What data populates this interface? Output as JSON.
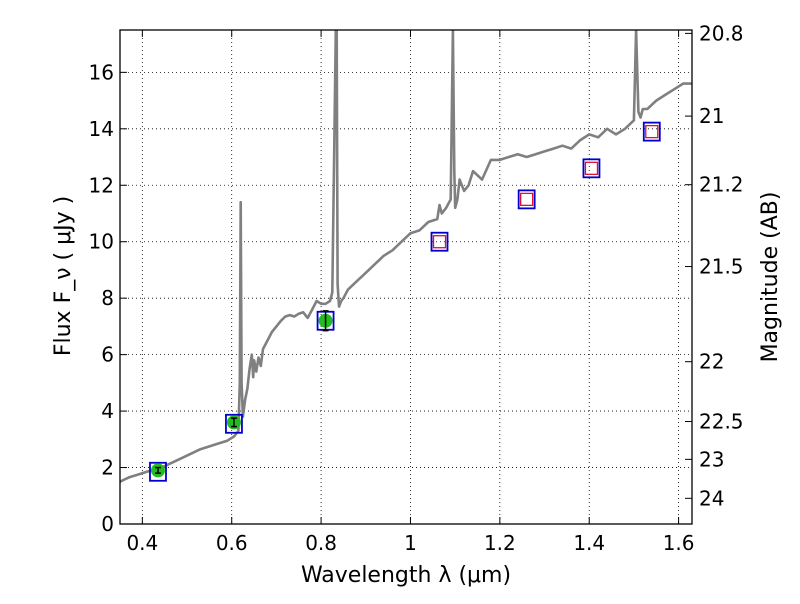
{
  "chart_data": {
    "type": "line",
    "xlabel": "Wavelength  λ (μm)",
    "ylabel": "Flux  F_ν  ( μJy )",
    "y2label": "Magnitude (AB)",
    "xlim": [
      0.35,
      1.63
    ],
    "ylim": [
      0,
      17.5
    ],
    "grid": true,
    "x_ticks": [
      0.4,
      0.6,
      0.8,
      1.0,
      1.2,
      1.4,
      1.6
    ],
    "x_tick_labels": [
      "0.4",
      "0.6",
      "0.8",
      "1",
      "1.2",
      "1.4",
      "1.6"
    ],
    "y_ticks": [
      0,
      2,
      4,
      6,
      8,
      10,
      12,
      14,
      16
    ],
    "y_tick_labels": [
      "0",
      "2",
      "4",
      "6",
      "8",
      "10",
      "12",
      "14",
      "16"
    ],
    "y2_ticks": [
      {
        "label": "20.8",
        "flux": 17.38
      },
      {
        "label": "21",
        "flux": 14.45
      },
      {
        "label": "21.2",
        "flux": 12.02
      },
      {
        "label": "21.5",
        "flux": 9.12
      },
      {
        "label": "22",
        "flux": 5.75
      },
      {
        "label": "22.5",
        "flux": 3.63
      },
      {
        "label": "23",
        "flux": 2.29
      },
      {
        "label": "24",
        "flux": 0.91
      }
    ],
    "colors": {
      "spectrum": "#808080",
      "model_box": "#0000cc",
      "observed_box": "#e0102f",
      "photometry_fill": "#22bb22",
      "errorbar": "#000000",
      "grid": "#000000"
    },
    "series": [
      {
        "kind": "model-spectrum",
        "x": [
          0.35,
          0.37,
          0.39,
          0.41,
          0.43,
          0.45,
          0.47,
          0.49,
          0.51,
          0.53,
          0.55,
          0.57,
          0.59,
          0.605,
          0.615,
          0.618,
          0.62,
          0.622,
          0.625,
          0.63,
          0.635,
          0.64,
          0.645,
          0.648,
          0.65,
          0.655,
          0.66,
          0.665,
          0.67,
          0.68,
          0.69,
          0.7,
          0.71,
          0.72,
          0.73,
          0.74,
          0.75,
          0.76,
          0.77,
          0.78,
          0.79,
          0.8,
          0.81,
          0.82,
          0.825,
          0.83,
          0.833,
          0.835,
          0.837,
          0.84,
          0.845,
          0.85,
          0.86,
          0.88,
          0.9,
          0.92,
          0.94,
          0.96,
          0.98,
          1.0,
          1.02,
          1.04,
          1.06,
          1.065,
          1.07,
          1.08,
          1.09,
          1.095,
          1.098,
          1.1,
          1.105,
          1.11,
          1.12,
          1.13,
          1.14,
          1.16,
          1.18,
          1.2,
          1.22,
          1.24,
          1.26,
          1.28,
          1.3,
          1.32,
          1.34,
          1.36,
          1.38,
          1.4,
          1.42,
          1.44,
          1.46,
          1.48,
          1.5,
          1.505,
          1.51,
          1.515,
          1.52,
          1.53,
          1.55,
          1.57,
          1.59,
          1.61,
          1.63
        ],
        "y": [
          1.5,
          1.65,
          1.75,
          1.85,
          1.95,
          2.05,
          2.2,
          2.35,
          2.5,
          2.65,
          2.75,
          2.85,
          2.95,
          3.1,
          3.3,
          5.0,
          11.4,
          5.0,
          3.8,
          4.4,
          4.8,
          5.5,
          6.0,
          5.2,
          5.8,
          5.4,
          5.9,
          5.6,
          6.2,
          6.5,
          6.8,
          7.0,
          7.2,
          7.35,
          7.4,
          7.35,
          7.45,
          7.5,
          7.3,
          7.6,
          7.9,
          7.8,
          7.8,
          7.9,
          8.2,
          14.0,
          17.5,
          17.5,
          8.5,
          7.7,
          7.9,
          8.0,
          8.3,
          8.6,
          8.9,
          9.2,
          9.5,
          9.7,
          10.0,
          10.3,
          10.4,
          10.7,
          10.8,
          11.3,
          11.0,
          11.2,
          11.5,
          17.5,
          12.5,
          11.2,
          11.5,
          12.2,
          11.8,
          12.0,
          12.5,
          12.2,
          12.9,
          12.9,
          13.0,
          13.1,
          13.0,
          13.1,
          13.2,
          13.3,
          13.4,
          13.3,
          13.6,
          13.8,
          13.7,
          14.0,
          13.8,
          14.0,
          14.3,
          17.5,
          14.6,
          14.4,
          14.7,
          14.7,
          15.0,
          15.2,
          15.4,
          15.6,
          15.6
        ]
      },
      {
        "kind": "model-photometry",
        "x": [
          0.435,
          0.605,
          0.81,
          1.065,
          1.26,
          1.405,
          1.54
        ],
        "y": [
          1.85,
          3.55,
          7.2,
          10.0,
          11.5,
          12.6,
          13.9
        ]
      },
      {
        "kind": "observed-photometry",
        "x": [
          0.435,
          0.605,
          0.81
        ],
        "y": [
          1.9,
          3.6,
          7.2
        ],
        "yerr": [
          0.1,
          0.15,
          0.35
        ]
      },
      {
        "kind": "upper-limits",
        "x": [
          1.065,
          1.26,
          1.405,
          1.54
        ],
        "y": [
          10.0,
          11.5,
          12.6,
          13.9
        ]
      }
    ]
  }
}
